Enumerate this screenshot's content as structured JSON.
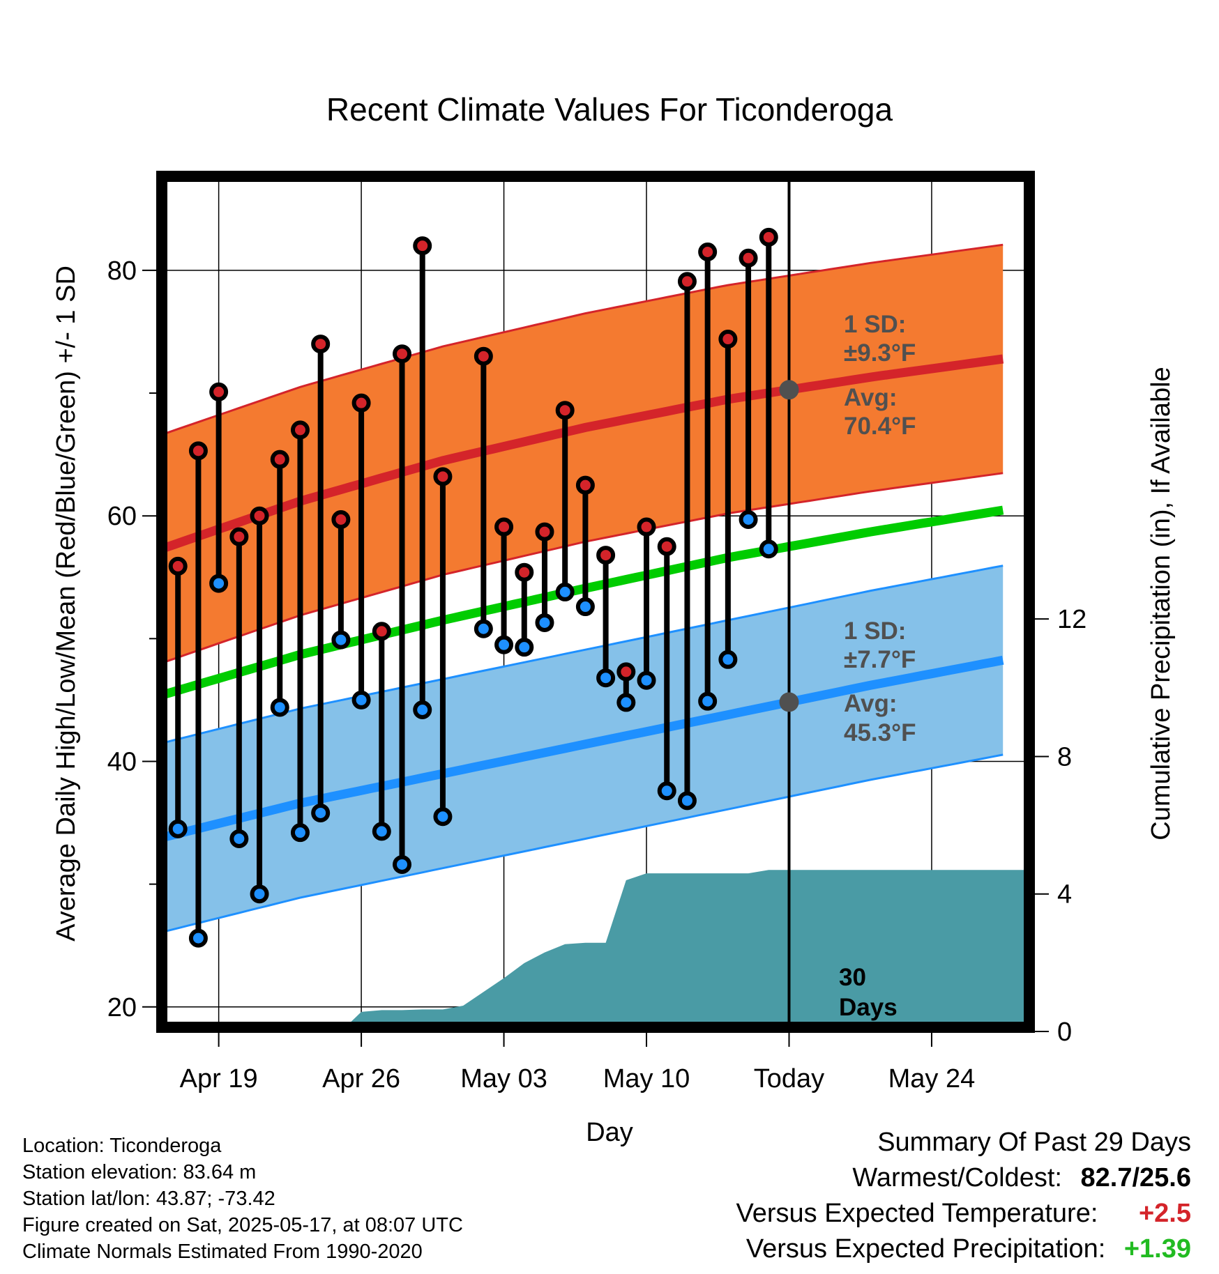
{
  "title": "Recent Climate Values For Ticonderoga",
  "y_left_label": "Average Daily High/Low/Mean (Red/Blue/Green) +/- 1 SD",
  "y_right_label": "Cumulative Precipitation (in), If Available",
  "x_label": "Day",
  "colors": {
    "high_band": "#f47a30",
    "high_line": "#d4242a",
    "low_band": "#85c1e9",
    "low_line": "#1e90ff",
    "mean_line": "#00cc00",
    "precip": "#4a9ba5",
    "high_dot": "#d4242a",
    "low_dot": "#1e90ff",
    "anomaly_temp": "#d4242a",
    "anomaly_precip": "#22bb22"
  },
  "annotations": {
    "high_sd_line1": "1 SD:",
    "high_sd_line2": "±9.3°F",
    "high_avg_line1": "Avg:",
    "high_avg_line2": "70.4°F",
    "low_sd_line1": "1 SD:",
    "low_sd_line2": "±7.7°F",
    "low_avg_line1": "Avg:",
    "low_avg_line2": "45.3°F",
    "window_line1": "30",
    "window_line2": "Days"
  },
  "chart_data": {
    "type": "line",
    "x_unit": "day",
    "x_range": [
      "2025-04-16",
      "2025-05-29"
    ],
    "x_ticks": [
      {
        "date": "2025-04-19",
        "label": "Apr 19"
      },
      {
        "date": "2025-04-26",
        "label": "Apr 26"
      },
      {
        "date": "2025-05-03",
        "label": "May 03"
      },
      {
        "date": "2025-05-10",
        "label": "May 10"
      },
      {
        "date": "2025-05-17",
        "label": "Today"
      },
      {
        "date": "2025-05-24",
        "label": "May 24"
      }
    ],
    "today": "2025-05-17",
    "y_left": {
      "min": 18,
      "max": 88,
      "ticks": [
        20,
        40,
        60,
        80
      ],
      "minor_ticks": [
        30,
        50,
        70
      ]
    },
    "y_right": {
      "min": 0,
      "max": 25,
      "ticks": [
        0,
        4,
        8,
        12
      ]
    },
    "normal_high": {
      "dates": [
        "2025-04-16",
        "2025-04-23",
        "2025-04-30",
        "2025-05-07",
        "2025-05-14",
        "2025-05-21",
        "2025-05-28"
      ],
      "values": [
        57.2,
        61.2,
        64.5,
        67.2,
        69.5,
        71.3,
        72.9
      ],
      "sd": 9.3
    },
    "normal_low": {
      "dates": [
        "2025-04-16",
        "2025-04-23",
        "2025-04-30",
        "2025-05-07",
        "2025-05-14",
        "2025-05-21",
        "2025-05-28"
      ],
      "values": [
        33.7,
        36.6,
        39.0,
        41.4,
        43.8,
        46.2,
        48.4
      ],
      "sd": 7.7
    },
    "normal_mean": {
      "dates": [
        "2025-04-16",
        "2025-04-23",
        "2025-04-30",
        "2025-05-07",
        "2025-05-14",
        "2025-05-21",
        "2025-05-28"
      ],
      "values": [
        45.3,
        48.7,
        51.5,
        54.1,
        56.6,
        58.7,
        60.6
      ]
    },
    "daily": [
      {
        "date": "2025-04-17",
        "high": 55.9,
        "low": 34.5
      },
      {
        "date": "2025-04-18",
        "high": 65.3,
        "low": 25.6
      },
      {
        "date": "2025-04-19",
        "high": 70.1,
        "low": 54.5
      },
      {
        "date": "2025-04-20",
        "high": 58.3,
        "low": 33.7
      },
      {
        "date": "2025-04-21",
        "high": 60.0,
        "low": 29.2
      },
      {
        "date": "2025-04-22",
        "high": 64.6,
        "low": 44.4
      },
      {
        "date": "2025-04-23",
        "high": 67.0,
        "low": 34.2
      },
      {
        "date": "2025-04-24",
        "high": 74.0,
        "low": 35.8
      },
      {
        "date": "2025-04-25",
        "high": 59.7,
        "low": 49.9
      },
      {
        "date": "2025-04-26",
        "high": 69.2,
        "low": 45.0
      },
      {
        "date": "2025-04-27",
        "high": 50.6,
        "low": 34.3
      },
      {
        "date": "2025-04-28",
        "high": 73.2,
        "low": 31.6
      },
      {
        "date": "2025-04-29",
        "high": 82.0,
        "low": 44.2
      },
      {
        "date": "2025-04-30",
        "high": 63.2,
        "low": 35.5
      },
      {
        "date": "2025-05-02",
        "high": 73.0,
        "low": 50.8
      },
      {
        "date": "2025-05-03",
        "high": 59.1,
        "low": 49.5
      },
      {
        "date": "2025-05-04",
        "high": 55.4,
        "low": 49.3
      },
      {
        "date": "2025-05-05",
        "high": 58.7,
        "low": 51.3
      },
      {
        "date": "2025-05-06",
        "high": 68.6,
        "low": 53.8
      },
      {
        "date": "2025-05-07",
        "high": 62.5,
        "low": 52.6
      },
      {
        "date": "2025-05-08",
        "high": 56.8,
        "low": 46.8
      },
      {
        "date": "2025-05-09",
        "high": 47.3,
        "low": 44.8
      },
      {
        "date": "2025-05-10",
        "high": 59.1,
        "low": 46.6
      },
      {
        "date": "2025-05-11",
        "high": 57.5,
        "low": 37.6
      },
      {
        "date": "2025-05-12",
        "high": 79.1,
        "low": 36.8
      },
      {
        "date": "2025-05-13",
        "high": 81.5,
        "low": 44.9
      },
      {
        "date": "2025-05-14",
        "high": 74.4,
        "low": 48.3
      },
      {
        "date": "2025-05-15",
        "high": 81.0,
        "low": 59.7
      },
      {
        "date": "2025-05-16",
        "high": 82.7,
        "low": 57.3
      }
    ],
    "cumulative_precip": {
      "dates": [
        "2025-04-25",
        "2025-04-26",
        "2025-04-27",
        "2025-04-28",
        "2025-04-29",
        "2025-04-30",
        "2025-05-01",
        "2025-05-02",
        "2025-05-03",
        "2025-05-04",
        "2025-05-05",
        "2025-05-06",
        "2025-05-07",
        "2025-05-08",
        "2025-05-09",
        "2025-05-10",
        "2025-05-11",
        "2025-05-12",
        "2025-05-13",
        "2025-05-14",
        "2025-05-15",
        "2025-05-16",
        "2025-05-17",
        "2025-05-28"
      ],
      "values": [
        0,
        0.57,
        0.62,
        0.62,
        0.64,
        0.64,
        0.75,
        1.15,
        1.55,
        1.99,
        2.3,
        2.54,
        2.58,
        2.58,
        4.4,
        4.6,
        4.6,
        4.6,
        4.6,
        4.6,
        4.6,
        4.7,
        4.7,
        4.7
      ]
    }
  },
  "info": {
    "location": "Location: Ticonderoga",
    "elevation": "Station elevation: 83.64 m",
    "latlon": "Station lat/lon: 43.87; -73.42",
    "created": "Figure created on Sat, 2025-05-17, at 08:07 UTC",
    "normals": "Climate Normals Estimated From 1990-2020"
  },
  "summary": {
    "heading": "Summary Of Past 29 Days",
    "warm_cold_label": "Warmest/Coldest:",
    "warm_cold_value": "82.7/25.6",
    "temp_label": "Versus Expected Temperature:",
    "temp_value": "+2.5",
    "precip_label": "Versus Expected Precipitation:",
    "precip_value": "+1.39"
  }
}
